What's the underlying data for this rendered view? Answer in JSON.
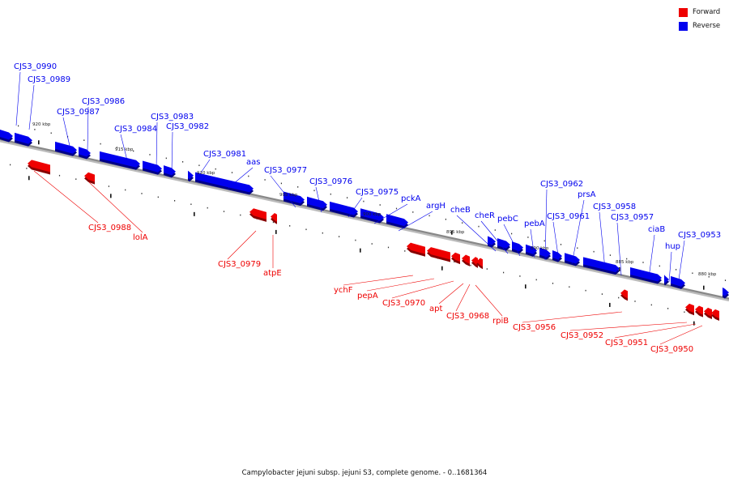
{
  "colors": {
    "forward": "#ee0000",
    "reverse": "#0000ee",
    "backbone": "#888888"
  },
  "legend": {
    "forward_label": "Forward",
    "reverse_label": "Reverse"
  },
  "caption": "Campylobacter jejuni subsp. jejuni S3, complete genome. - 0..1681364",
  "kbp_labels": [
    "920 kbp",
    "915 kbp",
    "910 kbp",
    "905 kbp",
    "900 kbp",
    "895 kbp",
    "890 kbp",
    "885 kbp",
    "880 kbp"
  ],
  "reverse_labels": [
    "CJS3_0990",
    "CJS3_0989",
    "CJS3_0986",
    "CJS3_0987",
    "CJS3_0983",
    "CJS3_0984",
    "CJS3_0982",
    "CJS3_0981",
    "aas",
    "CJS3_0977",
    "CJS3_0976",
    "CJS3_0975",
    "pckA",
    "argH",
    "cheB",
    "cheR",
    "pebC",
    "pebA",
    "CJS3_0962",
    "prsA",
    "CJS3_0961",
    "CJS3_0958",
    "CJS3_0957",
    "ciaB",
    "hup",
    "CJS3_0953"
  ],
  "forward_labels": [
    "CJS3_0988",
    "lolA",
    "CJS3_0979",
    "atpE",
    "ychF",
    "pepA",
    "CJS3_0970",
    "apt",
    "CJS3_0968",
    "rpiB",
    "CJS3_0956",
    "CJS3_0952",
    "CJS3_0951",
    "CJS3_0950"
  ]
}
